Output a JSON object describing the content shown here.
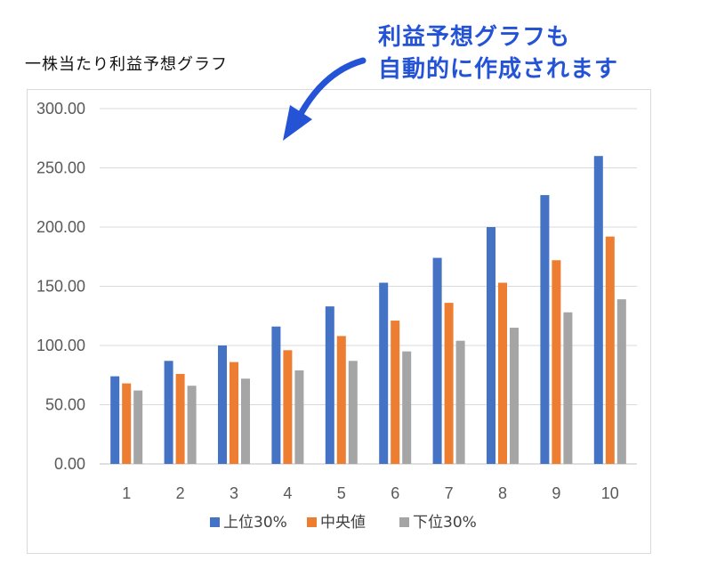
{
  "header": {
    "title": "一株当たり利益予想グラフ",
    "callout_line1": "利益予想グラフも",
    "callout_line2": "自動的に作成されます"
  },
  "chart_data": {
    "type": "bar",
    "categories": [
      "1",
      "2",
      "3",
      "4",
      "5",
      "6",
      "7",
      "8",
      "9",
      "10"
    ],
    "series": [
      {
        "name": "上位30%",
        "color": "#4472c4",
        "values": [
          74,
          87,
          100,
          116,
          133,
          153,
          174,
          200,
          227,
          260
        ]
      },
      {
        "name": "中央値",
        "color": "#ed7d31",
        "values": [
          68,
          76,
          86,
          96,
          108,
          121,
          136,
          153,
          172,
          192
        ]
      },
      {
        "name": "下位30%",
        "color": "#a5a5a5",
        "values": [
          62,
          66,
          72,
          79,
          87,
          95,
          104,
          115,
          128,
          139
        ]
      }
    ],
    "ylim": [
      0,
      300
    ],
    "yticks": [
      "0.00",
      "50.00",
      "100.00",
      "150.00",
      "200.00",
      "250.00",
      "300.00"
    ],
    "ytick_values": [
      0,
      50,
      100,
      150,
      200,
      250,
      300
    ],
    "grid": true,
    "legend": "bottom",
    "annotation_arrow_color": "#2453d6"
  }
}
